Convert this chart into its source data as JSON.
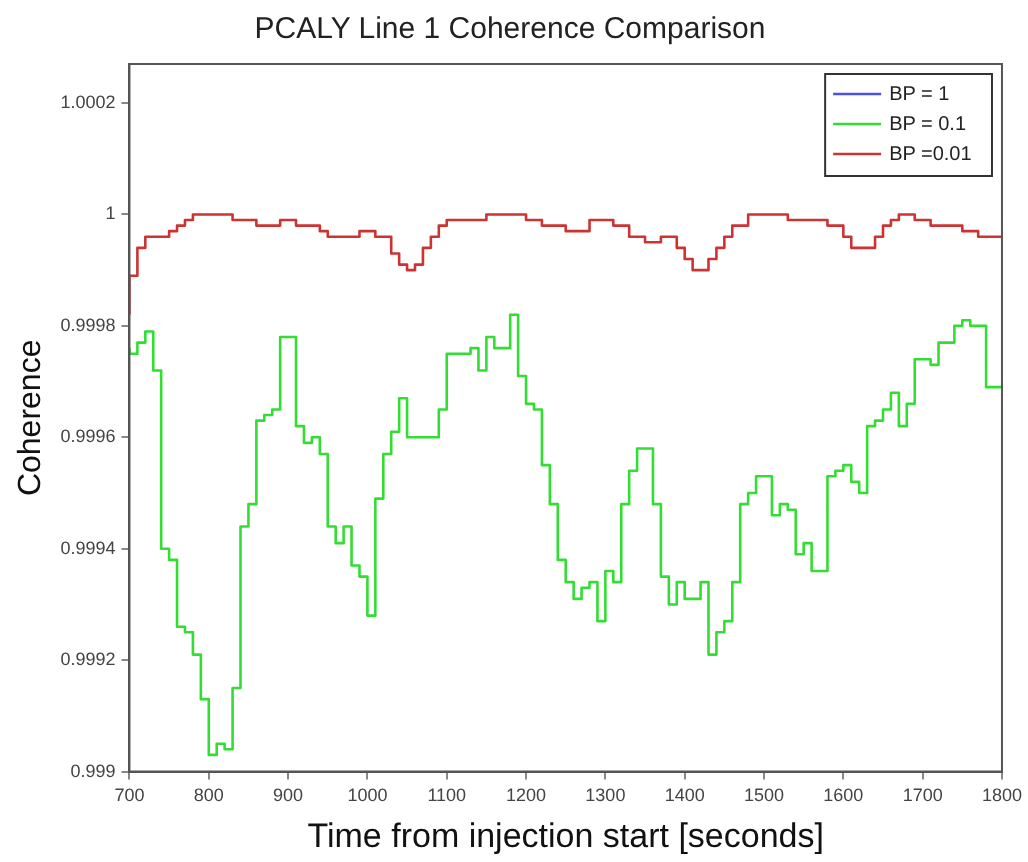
{
  "chart_data": {
    "type": "step",
    "title": "PCALY Line 1 Coherence Comparison",
    "xlabel": "Time from injection start [seconds]",
    "ylabel": "Coherence",
    "x": [
      700,
      710,
      720,
      730,
      740,
      750,
      760,
      770,
      780,
      790,
      800,
      810,
      820,
      830,
      840,
      850,
      860,
      870,
      880,
      890,
      900,
      910,
      920,
      930,
      940,
      950,
      960,
      970,
      980,
      990,
      1000,
      1010,
      1020,
      1030,
      1040,
      1050,
      1060,
      1070,
      1080,
      1090,
      1100,
      1110,
      1120,
      1130,
      1140,
      1150,
      1160,
      1170,
      1180,
      1190,
      1200,
      1210,
      1220,
      1230,
      1240,
      1250,
      1260,
      1270,
      1280,
      1290,
      1300,
      1310,
      1320,
      1330,
      1340,
      1350,
      1360,
      1370,
      1380,
      1390,
      1400,
      1410,
      1420,
      1430,
      1440,
      1450,
      1460,
      1470,
      1480,
      1490,
      1500,
      1510,
      1520,
      1530,
      1540,
      1550,
      1560,
      1570,
      1580,
      1590,
      1600,
      1610,
      1620,
      1630,
      1640,
      1650,
      1660,
      1670,
      1680,
      1690,
      1700,
      1710,
      1720,
      1730,
      1740,
      1750,
      1760,
      1770,
      1780,
      1790,
      1800
    ],
    "series": [
      {
        "name": "BP = 1",
        "color": "#5050e0",
        "values": [
          null,
          null,
          null,
          null,
          null,
          null,
          null,
          null,
          null,
          null,
          null,
          null,
          null,
          null,
          null,
          null,
          null,
          null,
          null,
          null,
          null,
          null,
          null,
          null,
          null,
          null,
          null,
          null,
          null,
          null,
          null,
          null,
          null,
          null,
          null,
          null,
          null,
          null,
          null,
          null,
          null,
          null,
          null,
          null,
          null,
          null,
          null,
          null,
          null,
          null,
          null,
          null,
          null,
          null,
          null,
          null,
          null,
          null,
          null,
          null,
          null,
          null,
          null,
          null,
          null,
          null,
          null,
          null,
          null,
          null,
          null,
          null,
          null,
          null,
          null,
          null,
          null,
          null,
          null,
          null,
          null,
          null,
          null,
          null,
          null,
          null,
          null,
          null,
          null,
          null,
          null,
          null,
          null,
          null,
          null,
          null,
          null,
          null,
          null,
          null,
          null,
          null,
          null,
          null,
          null,
          null,
          null,
          null,
          null,
          null,
          null
        ]
      },
      {
        "name": "BP = 0.1",
        "color": "#33dd33",
        "values": [
          0.99976,
          0.99975,
          0.99977,
          0.99979,
          0.99972,
          0.9994,
          0.99938,
          0.99926,
          0.99925,
          0.99921,
          0.99913,
          0.99903,
          0.99905,
          0.99904,
          0.99915,
          0.99944,
          0.99948,
          0.99963,
          0.99964,
          0.99965,
          0.99978,
          0.99978,
          0.99962,
          0.99959,
          0.9996,
          0.99957,
          0.99944,
          0.99941,
          0.99944,
          0.99937,
          0.99935,
          0.99928,
          0.99949,
          0.99957,
          0.99961,
          0.99967,
          0.9996,
          0.9996,
          0.9996,
          0.9996,
          0.99965,
          0.99975,
          0.99975,
          0.99975,
          0.99976,
          0.99972,
          0.99978,
          0.99976,
          0.99976,
          0.99982,
          0.99971,
          0.99966,
          0.99965,
          0.99955,
          0.99948,
          0.99938,
          0.99934,
          0.99931,
          0.99933,
          0.99934,
          0.99927,
          0.99936,
          0.99934,
          0.99948,
          0.99954,
          0.99958,
          0.99958,
          0.99948,
          0.99935,
          0.9993,
          0.99934,
          0.99931,
          0.99931,
          0.99934,
          0.99921,
          0.99925,
          0.99927,
          0.99934,
          0.99948,
          0.9995,
          0.99953,
          0.99953,
          0.99946,
          0.99948,
          0.99947,
          0.99939,
          0.99941,
          0.99936,
          0.99936,
          0.99953,
          0.99954,
          0.99955,
          0.99952,
          0.9995,
          0.99962,
          0.99963,
          0.99965,
          0.99968,
          0.99962,
          0.99966,
          0.99974,
          0.99974,
          0.99973,
          0.99977,
          0.99977,
          0.9998,
          0.99981,
          0.9998,
          0.9998,
          0.99969,
          0.99969
        ]
      },
      {
        "name": "BP =0.01",
        "color": "#cc3333",
        "values": [
          0.99982,
          0.99989,
          0.99994,
          0.99996,
          0.99996,
          0.99996,
          0.99997,
          0.99998,
          0.99999,
          1.0,
          1.0,
          1.0,
          1.0,
          1.0,
          0.99999,
          0.99999,
          0.99999,
          0.99998,
          0.99998,
          0.99998,
          0.99999,
          0.99999,
          0.99998,
          0.99998,
          0.99998,
          0.99997,
          0.99996,
          0.99996,
          0.99996,
          0.99996,
          0.99997,
          0.99997,
          0.99996,
          0.99996,
          0.99993,
          0.99991,
          0.9999,
          0.99991,
          0.99994,
          0.99996,
          0.99998,
          0.99999,
          0.99999,
          0.99999,
          0.99999,
          0.99999,
          1.0,
          1.0,
          1.0,
          1.0,
          1.0,
          0.99999,
          0.99999,
          0.99998,
          0.99998,
          0.99998,
          0.99997,
          0.99997,
          0.99997,
          0.99999,
          0.99999,
          0.99999,
          0.99998,
          0.99998,
          0.99996,
          0.99996,
          0.99995,
          0.99995,
          0.99996,
          0.99996,
          0.99994,
          0.99992,
          0.9999,
          0.9999,
          0.99992,
          0.99994,
          0.99996,
          0.99998,
          0.99998,
          1.0,
          1.0,
          1.0,
          1.0,
          1.0,
          0.99999,
          0.99999,
          0.99999,
          0.99999,
          0.99999,
          0.99998,
          0.99998,
          0.99996,
          0.99994,
          0.99994,
          0.99994,
          0.99996,
          0.99998,
          0.99999,
          1.0,
          1.0,
          0.99999,
          0.99999,
          0.99998,
          0.99998,
          0.99998,
          0.99998,
          0.99997,
          0.99997,
          0.99996,
          0.99996,
          0.99996
        ]
      }
    ],
    "xlim": [
      700,
      1800
    ],
    "xticks": [
      700,
      800,
      900,
      1000,
      1100,
      1200,
      1300,
      1400,
      1500,
      1600,
      1700,
      1800
    ],
    "ylim": [
      0.999,
      1.00027
    ],
    "yticks": [
      0.999,
      0.9992,
      0.9994,
      0.9996,
      0.9998,
      1,
      1.0002
    ],
    "grid": false,
    "legend": "top right",
    "marker": "none",
    "line_style": "solid"
  }
}
